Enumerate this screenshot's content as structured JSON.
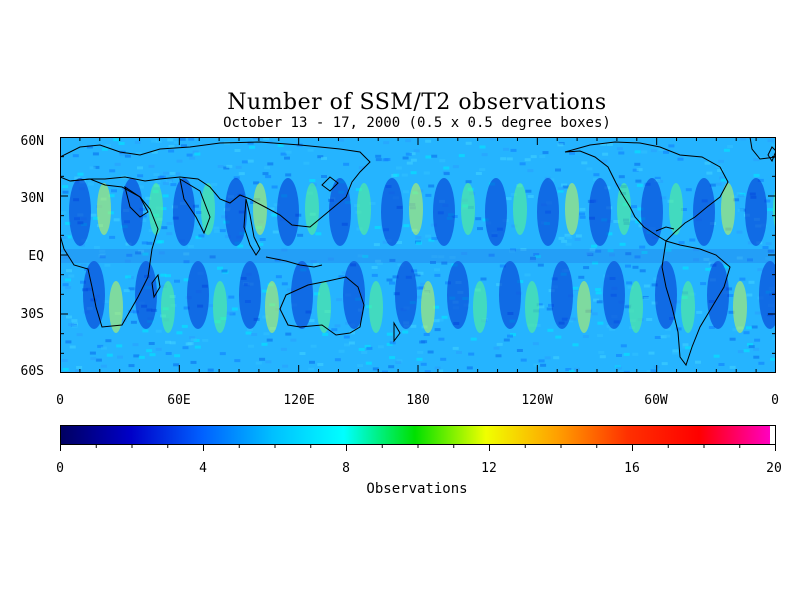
{
  "title": "Number of SSM/T2 observations",
  "subtitle": "October 13 - 17, 2000 (0.5 x 0.5 degree boxes)",
  "map": {
    "lat_labels": [
      "60N",
      "30N",
      "EQ",
      "30S",
      "60S"
    ],
    "lon_labels": [
      "0",
      "60E",
      "120E",
      "180",
      "120W",
      "60W",
      "0"
    ]
  },
  "colorbar": {
    "label": "Observations",
    "ticks": [
      "0",
      "4",
      "8",
      "12",
      "16",
      "20"
    ],
    "range": [
      0,
      20
    ],
    "colors": [
      "#000060",
      "#0000c8",
      "#0060ff",
      "#00c0ff",
      "#00ffff",
      "#00e000",
      "#f0ff00",
      "#ffa000",
      "#ff3000",
      "#ff0000",
      "#ff00c0"
    ]
  }
}
